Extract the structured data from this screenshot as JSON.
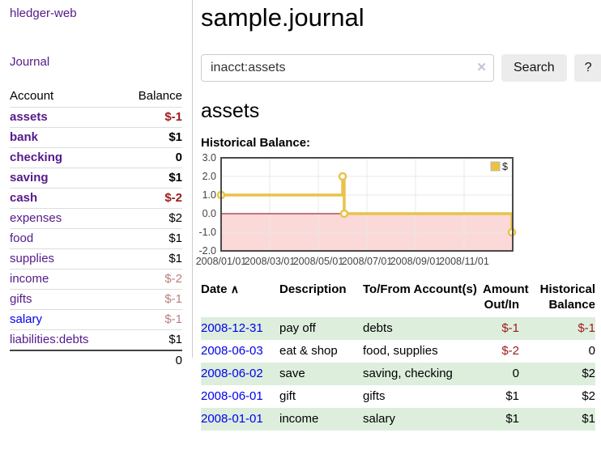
{
  "sidebar": {
    "brand": "hledger-web",
    "journal_link": "Journal",
    "accounts_table": {
      "account_header": "Account",
      "balance_header": "Balance",
      "rows": [
        {
          "account": "assets",
          "balance": "$-1",
          "depth": 1,
          "bold": true,
          "bal_class": "neg",
          "link": "visited"
        },
        {
          "account": "bank",
          "balance": "$1",
          "depth": 2,
          "bold": true,
          "bal_class": "",
          "link": "visited"
        },
        {
          "account": "checking",
          "balance": "0",
          "depth": 3,
          "bold": true,
          "bal_class": "",
          "link": "visited"
        },
        {
          "account": "saving",
          "balance": "$1",
          "depth": 3,
          "bold": true,
          "bal_class": "",
          "link": "visited"
        },
        {
          "account": "cash",
          "balance": "$-2",
          "depth": 2,
          "bold": true,
          "bal_class": "neg",
          "link": "visited"
        },
        {
          "account": "expenses",
          "balance": "$2",
          "depth": 1,
          "bold": false,
          "bal_class": "",
          "link": "visited"
        },
        {
          "account": "food",
          "balance": "$1",
          "depth": 2,
          "bold": false,
          "bal_class": "",
          "link": "visited"
        },
        {
          "account": "supplies",
          "balance": "$1",
          "depth": 2,
          "bold": false,
          "bal_class": "",
          "link": "visited"
        },
        {
          "account": "income",
          "balance": "$-2",
          "depth": 1,
          "bold": false,
          "bal_class": "negweak",
          "link": "visited"
        },
        {
          "account": "gifts",
          "balance": "$-1",
          "depth": 2,
          "bold": false,
          "bal_class": "negweak",
          "link": "visited"
        },
        {
          "account": "salary",
          "balance": "$-1",
          "depth": 2,
          "bold": false,
          "bal_class": "negweak",
          "link": "new"
        },
        {
          "account": "liabilities:debts",
          "balance": "$1",
          "depth": 1,
          "bold": false,
          "bal_class": "",
          "link": "visited"
        }
      ],
      "total": "0"
    }
  },
  "main": {
    "title": "sample.journal",
    "search": {
      "value": "inacct:assets",
      "clear_icon": "✕",
      "search_button": "Search",
      "help_button": "?"
    },
    "account_heading": "assets",
    "chart_title": "Historical Balance:"
  },
  "chart_data": {
    "type": "line",
    "step": true,
    "title": "Historical Balance:",
    "series": [
      {
        "name": "$",
        "points": [
          [
            "2008-01-01",
            1
          ],
          [
            "2008-06-01",
            2
          ],
          [
            "2008-06-03",
            0
          ],
          [
            "2008-12-31",
            -1
          ]
        ]
      }
    ],
    "ylim": [
      -2,
      3
    ],
    "yticks": [
      "3.0",
      "2.0",
      "1.0",
      "0.0",
      "-1.0",
      "-2.0"
    ],
    "ytick_values": [
      3,
      2,
      1,
      0,
      -1,
      -2
    ],
    "xticks": [
      {
        "label": "2008/01/01",
        "month": 0
      },
      {
        "label": "2008/03/01",
        "month": 2
      },
      {
        "label": "2008/05/01",
        "month": 4
      },
      {
        "label": "2008/07/01",
        "month": 6
      },
      {
        "label": "2008/09/01",
        "month": 8
      },
      {
        "label": "2008/11/01",
        "month": 10
      }
    ],
    "x_range_months": 12,
    "legend": {
      "label": "$",
      "position": "top-right"
    },
    "grid": true,
    "colors": {
      "line": "#e9c24a",
      "marker_fill": "#ffffff",
      "negative_region": "#fbd9d9",
      "zero_line": "#8b0000",
      "grid": "#e8e8e8",
      "border": "#4a4a4a",
      "legend_swatch": "#edc240",
      "tick_text": "#444444"
    }
  },
  "register_table": {
    "headers": {
      "date": "Date",
      "sort_icon": "∧",
      "description": "Description",
      "accounts": "To/From Account(s)",
      "amount": "Amount Out/In",
      "balance": "Historical Balance"
    },
    "rows": [
      {
        "date": "2008-12-31",
        "description": "pay off",
        "accounts": "debts",
        "amount": "$-1",
        "amount_neg": true,
        "balance": "$-1",
        "balance_neg": true,
        "stripe": true
      },
      {
        "date": "2008-06-03",
        "description": "eat & shop",
        "accounts": "food, supplies",
        "amount": "$-2",
        "amount_neg": true,
        "balance": "0",
        "balance_neg": false,
        "stripe": false
      },
      {
        "date": "2008-06-02",
        "description": "save",
        "accounts": "saving, checking",
        "amount": "0",
        "amount_neg": false,
        "balance": "$2",
        "balance_neg": false,
        "stripe": true
      },
      {
        "date": "2008-06-01",
        "description": "gift",
        "accounts": "gifts",
        "amount": "$1",
        "amount_neg": false,
        "balance": "$2",
        "balance_neg": false,
        "stripe": false
      },
      {
        "date": "2008-01-01",
        "description": "income",
        "accounts": "salary",
        "amount": "$1",
        "amount_neg": false,
        "balance": "$1",
        "balance_neg": false,
        "stripe": true
      }
    ]
  }
}
